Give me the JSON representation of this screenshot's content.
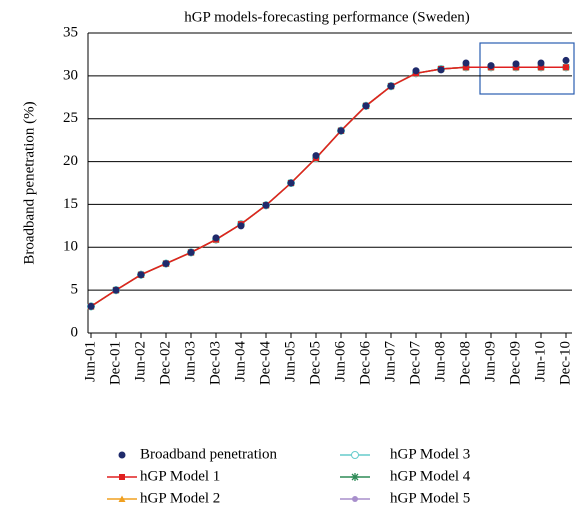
{
  "chart_data": {
    "type": "line",
    "title": "hGP models-forecasting performance (Sweden)",
    "ylabel": "Broadband penetration (%)",
    "categories": [
      "Jun-01",
      "Dec-01",
      "Jun-02",
      "Dec-02",
      "Jun-03",
      "Dec-03",
      "Jun-04",
      "Dec-04",
      "Jun-05",
      "Dec-05",
      "Jun-06",
      "Dec-06",
      "Jun-07",
      "Dec-07",
      "Jun-08",
      "Dec-08",
      "Jun-09",
      "Dec-09",
      "Jun-10",
      "Dec-10"
    ],
    "series": [
      {
        "name": "Broadband penetration",
        "color": "#1f2a6b",
        "marker": "dot",
        "line": false,
        "values": [
          3.1,
          5.0,
          6.8,
          8.1,
          9.4,
          11.1,
          12.5,
          14.9,
          17.5,
          20.7,
          23.6,
          26.5,
          28.8,
          30.6,
          30.7,
          31.5,
          31.2,
          31.4,
          31.5,
          31.8
        ]
      },
      {
        "name": "hGP Model 1",
        "color": "#e02020",
        "marker": "square",
        "line": true,
        "values": [
          3.1,
          5.0,
          6.8,
          8.1,
          9.4,
          10.9,
          12.7,
          14.9,
          17.5,
          20.4,
          23.6,
          26.5,
          28.8,
          30.3,
          30.8,
          31.0,
          31.0,
          31.0,
          31.0,
          31.0
        ]
      },
      {
        "name": "hGP Model 2",
        "color": "#f0a020",
        "marker": "triangle",
        "line": true,
        "values": [
          3.1,
          5.0,
          6.8,
          8.1,
          9.4,
          10.9,
          12.7,
          14.9,
          17.5,
          20.4,
          23.6,
          26.5,
          28.8,
          30.3,
          30.8,
          31.0,
          31.0,
          31.0,
          31.0,
          31.0
        ]
      },
      {
        "name": "hGP Model 3",
        "color": "#66cccc",
        "marker": "ring",
        "line": true,
        "values": [
          3.1,
          5.0,
          6.8,
          8.1,
          9.4,
          10.9,
          12.7,
          14.9,
          17.5,
          20.4,
          23.6,
          26.5,
          28.8,
          30.3,
          30.8,
          31.0,
          31.0,
          31.0,
          31.0,
          31.0
        ]
      },
      {
        "name": "hGP Model 4",
        "color": "#2e8b57",
        "marker": "star",
        "line": true,
        "values": [
          3.1,
          5.0,
          6.8,
          8.1,
          9.4,
          10.9,
          12.7,
          14.9,
          17.5,
          20.4,
          23.6,
          26.5,
          28.8,
          30.3,
          30.8,
          31.0,
          31.0,
          31.0,
          31.0,
          31.0
        ]
      },
      {
        "name": "hGP Model 5",
        "color": "#a88fcc",
        "marker": "circle",
        "line": true,
        "values": [
          3.1,
          5.0,
          6.8,
          8.1,
          9.4,
          10.9,
          12.7,
          14.9,
          17.5,
          20.4,
          23.6,
          26.5,
          28.8,
          30.3,
          30.8,
          31.0,
          31.0,
          31.0,
          31.0,
          31.0
        ]
      }
    ],
    "ylim": [
      0,
      35
    ],
    "yticks": [
      0,
      5,
      10,
      15,
      20,
      25,
      30,
      35
    ],
    "grid": true
  }
}
